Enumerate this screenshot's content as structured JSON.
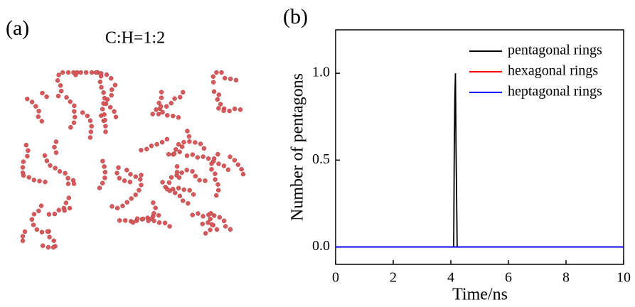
{
  "panel_a": {
    "label": "(a)",
    "caption": "C:H=1:2"
  },
  "chart_data": {
    "type": "line",
    "panel_label": "(b)",
    "xlabel": "Time/ns",
    "ylabel": "Number of pentagons",
    "xlim": [
      0,
      10
    ],
    "ylim": [
      -0.1,
      1.25
    ],
    "xticks": [
      0,
      2,
      4,
      6,
      8,
      10
    ],
    "yticks": [
      {
        "value": 0,
        "label": "0.0"
      },
      {
        "value": 0.5,
        "label": "0.5"
      },
      {
        "value": 1,
        "label": "1.0"
      }
    ],
    "legend": "upper right",
    "series": [
      {
        "name": "pentagonal rings",
        "color": "#000000",
        "x": [
          0,
          4.1,
          4.12,
          4.14,
          4.16,
          4.18,
          4.2,
          4.22,
          10
        ],
        "values": [
          0,
          0,
          0.57,
          0.86,
          1.0,
          0.58,
          0.3,
          0,
          0
        ]
      },
      {
        "name": "hexagonal rings",
        "color": "#ff0000",
        "x": [
          0,
          10
        ],
        "values": [
          0,
          0
        ]
      },
      {
        "name": "heptagonal rings",
        "color": "#0000ff",
        "x": [
          0,
          10
        ],
        "values": [
          0,
          0
        ]
      }
    ]
  }
}
